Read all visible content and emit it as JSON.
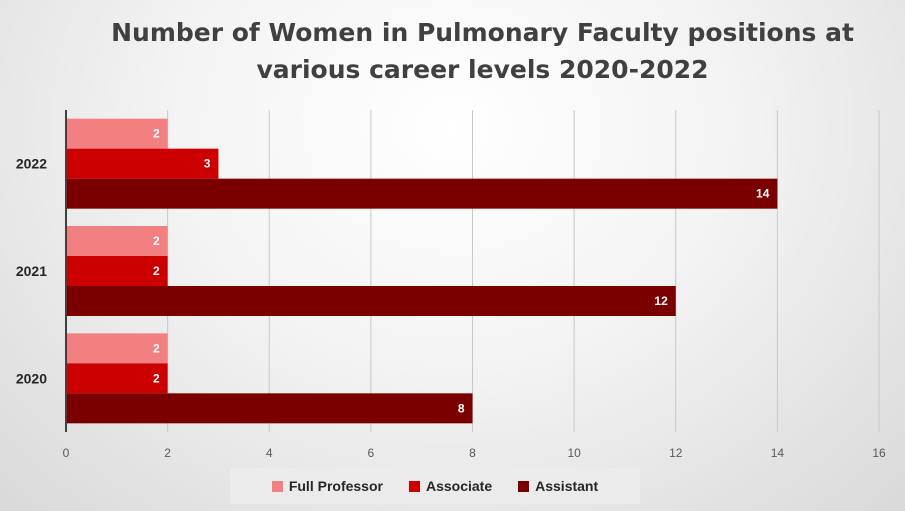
{
  "chart_data": {
    "type": "bar",
    "orientation": "horizontal",
    "title_lines": [
      "Number of Women in Pulmonary Faculty positions at",
      "various career levels 2020-2022"
    ],
    "categories": [
      "2022",
      "2021",
      "2020"
    ],
    "series": [
      {
        "name": "Full Professor",
        "color": "#f28080",
        "values": [
          2,
          2,
          2
        ]
      },
      {
        "name": "Associate",
        "color": "#cc0000",
        "values": [
          3,
          2,
          2
        ]
      },
      {
        "name": "Assistant",
        "color": "#7a0000",
        "values": [
          14,
          12,
          8
        ]
      }
    ],
    "xlim": [
      0,
      16
    ],
    "x_ticks": [
      "0",
      "2",
      "4",
      "6",
      "8",
      "10",
      "12",
      "14",
      "16"
    ],
    "grid": "vertical",
    "legend_position": "bottom",
    "data_labels": true
  }
}
